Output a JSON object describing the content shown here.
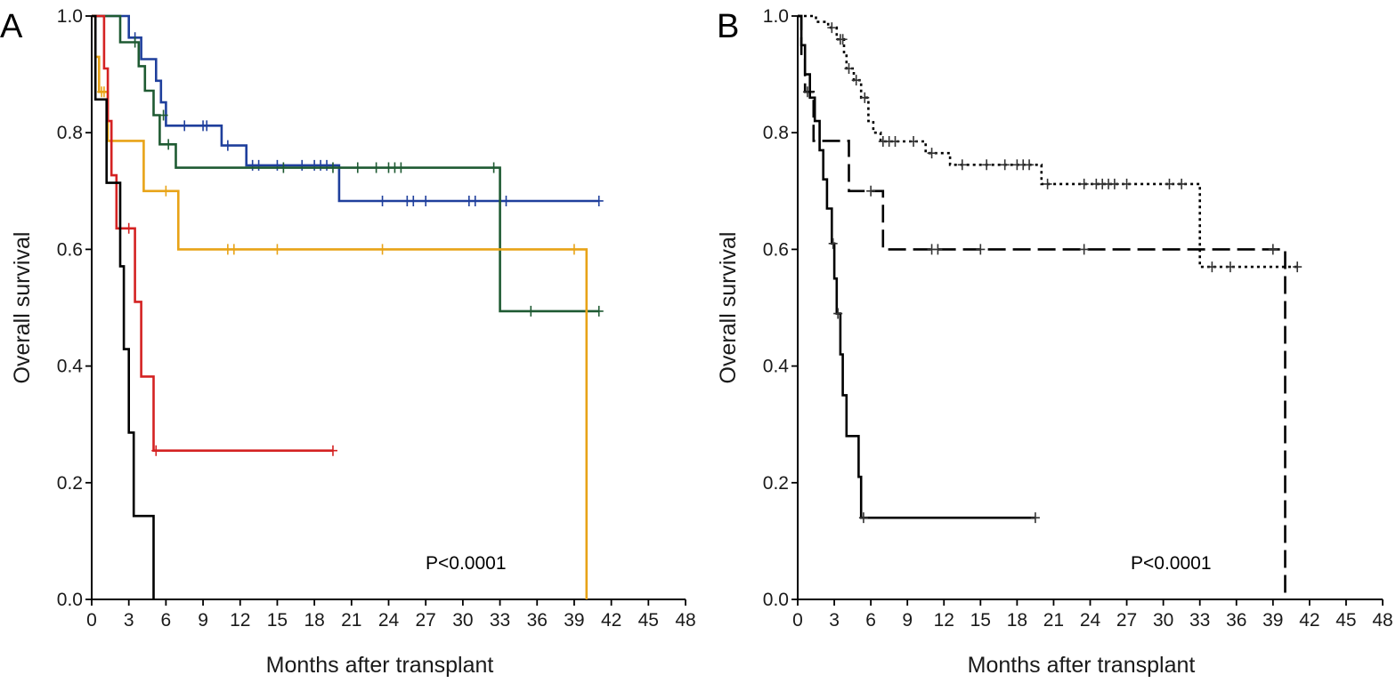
{
  "chart_data": [
    {
      "type": "line",
      "step": true,
      "panel_label": "A",
      "title": "",
      "xlabel": "Months after transplant",
      "ylabel": "Overall survival",
      "xlim": [
        0,
        48
      ],
      "ylim": [
        0,
        1.0
      ],
      "x_ticks": [
        "0",
        "3",
        "6",
        "9",
        "12",
        "15",
        "18",
        "21",
        "24",
        "27",
        "30",
        "33",
        "36",
        "39",
        "42",
        "45",
        "48"
      ],
      "y_ticks": [
        "0.0",
        "0.2",
        "0.4",
        "0.6",
        "0.8",
        "1.0"
      ],
      "annotation": "P<0.0001",
      "grid": false,
      "series": [
        {
          "color": "#1f3f9c",
          "line_style": "solid",
          "points": [
            [
              0,
              1.0
            ],
            [
              3.0,
              1.0
            ],
            [
              3.0,
              0.963
            ],
            [
              4.0,
              0.963
            ],
            [
              4.0,
              0.926
            ],
            [
              5.2,
              0.926
            ],
            [
              5.2,
              0.889
            ],
            [
              5.6,
              0.889
            ],
            [
              5.6,
              0.852
            ],
            [
              6.0,
              0.852
            ],
            [
              6.0,
              0.812
            ],
            [
              10.5,
              0.812
            ],
            [
              10.5,
              0.778
            ],
            [
              12.5,
              0.778
            ],
            [
              12.5,
              0.744
            ],
            [
              20.0,
              0.744
            ],
            [
              20.0,
              0.683
            ],
            [
              41.0,
              0.683
            ]
          ],
          "censored": [
            [
              3.5,
              0.963
            ],
            [
              7.5,
              0.812
            ],
            [
              9.0,
              0.812
            ],
            [
              9.3,
              0.812
            ],
            [
              11.0,
              0.778
            ],
            [
              13.0,
              0.744
            ],
            [
              13.5,
              0.744
            ],
            [
              15.0,
              0.744
            ],
            [
              17.0,
              0.744
            ],
            [
              18.0,
              0.744
            ],
            [
              18.5,
              0.744
            ],
            [
              19.0,
              0.744
            ],
            [
              23.5,
              0.683
            ],
            [
              25.5,
              0.683
            ],
            [
              26.0,
              0.683
            ],
            [
              27.0,
              0.683
            ],
            [
              30.5,
              0.683
            ],
            [
              31.0,
              0.683
            ],
            [
              33.5,
              0.683
            ],
            [
              41.0,
              0.683
            ]
          ]
        },
        {
          "color": "#1e5a32",
          "line_style": "solid",
          "points": [
            [
              0,
              1.0
            ],
            [
              2.3,
              1.0
            ],
            [
              2.3,
              0.955
            ],
            [
              3.8,
              0.955
            ],
            [
              3.8,
              0.914
            ],
            [
              4.3,
              0.914
            ],
            [
              4.3,
              0.872
            ],
            [
              5.0,
              0.872
            ],
            [
              5.0,
              0.83
            ],
            [
              5.5,
              0.83
            ],
            [
              5.5,
              0.78
            ],
            [
              6.8,
              0.78
            ],
            [
              6.8,
              0.74
            ],
            [
              33.0,
              0.74
            ],
            [
              33.0,
              0.494
            ],
            [
              41.0,
              0.494
            ]
          ],
          "censored": [
            [
              3.5,
              0.955
            ],
            [
              5.8,
              0.83
            ],
            [
              6.2,
              0.78
            ],
            [
              15.5,
              0.74
            ],
            [
              19.5,
              0.74
            ],
            [
              21.5,
              0.74
            ],
            [
              23.0,
              0.74
            ],
            [
              24.0,
              0.74
            ],
            [
              24.5,
              0.74
            ],
            [
              25.0,
              0.74
            ],
            [
              32.5,
              0.74
            ],
            [
              35.5,
              0.494
            ],
            [
              41.0,
              0.494
            ]
          ]
        },
        {
          "color": "#e8a317",
          "line_style": "solid",
          "points": [
            [
              0,
              1.0
            ],
            [
              0.3,
              1.0
            ],
            [
              0.3,
              0.93
            ],
            [
              0.6,
              0.93
            ],
            [
              0.6,
              0.87
            ],
            [
              1.3,
              0.87
            ],
            [
              1.3,
              0.786
            ],
            [
              4.2,
              0.786
            ],
            [
              4.2,
              0.7
            ],
            [
              7.0,
              0.7
            ],
            [
              7.0,
              0.6
            ],
            [
              40.0,
              0.6
            ],
            [
              40.0,
              0.0
            ]
          ],
          "censored": [
            [
              0.8,
              0.87
            ],
            [
              1.0,
              0.87
            ],
            [
              6.0,
              0.7
            ],
            [
              11.0,
              0.6
            ],
            [
              11.5,
              0.6
            ],
            [
              15.0,
              0.6
            ],
            [
              23.5,
              0.6
            ],
            [
              39.0,
              0.6
            ]
          ]
        },
        {
          "color": "#d42222",
          "line_style": "solid",
          "points": [
            [
              0,
              1.0
            ],
            [
              1.0,
              1.0
            ],
            [
              1.0,
              0.91
            ],
            [
              1.3,
              0.91
            ],
            [
              1.3,
              0.82
            ],
            [
              1.6,
              0.82
            ],
            [
              1.6,
              0.727
            ],
            [
              2.0,
              0.727
            ],
            [
              2.0,
              0.636
            ],
            [
              3.5,
              0.636
            ],
            [
              3.5,
              0.51
            ],
            [
              4.0,
              0.51
            ],
            [
              4.0,
              0.382
            ],
            [
              5.0,
              0.382
            ],
            [
              5.0,
              0.255
            ],
            [
              19.5,
              0.255
            ]
          ],
          "censored": [
            [
              3.0,
              0.636
            ],
            [
              5.2,
              0.255
            ],
            [
              19.5,
              0.255
            ]
          ]
        },
        {
          "color": "#000000",
          "line_style": "solid",
          "points": [
            [
              0,
              1.0
            ],
            [
              0.3,
              1.0
            ],
            [
              0.3,
              0.857
            ],
            [
              1.2,
              0.857
            ],
            [
              1.2,
              0.714
            ],
            [
              2.3,
              0.714
            ],
            [
              2.3,
              0.571
            ],
            [
              2.6,
              0.571
            ],
            [
              2.6,
              0.429
            ],
            [
              3.0,
              0.429
            ],
            [
              3.0,
              0.286
            ],
            [
              3.4,
              0.286
            ],
            [
              3.4,
              0.143
            ],
            [
              5.0,
              0.143
            ],
            [
              5.0,
              0.0
            ]
          ],
          "censored": []
        }
      ]
    },
    {
      "type": "line",
      "step": true,
      "panel_label": "B",
      "title": "",
      "xlabel": "Months after transplant",
      "ylabel": "Overall survival",
      "xlim": [
        0,
        48
      ],
      "ylim": [
        0,
        1.0
      ],
      "x_ticks": [
        "0",
        "3",
        "6",
        "9",
        "12",
        "15",
        "18",
        "21",
        "24",
        "27",
        "30",
        "33",
        "36",
        "39",
        "42",
        "45",
        "48"
      ],
      "y_ticks": [
        "0.0",
        "0.2",
        "0.4",
        "0.6",
        "0.8",
        "1.0"
      ],
      "annotation": "P<0.0001",
      "grid": false,
      "series": [
        {
          "color": "#000000",
          "line_style": "dotted",
          "points": [
            [
              0,
              1.0
            ],
            [
              1.5,
              1.0
            ],
            [
              1.5,
              0.99
            ],
            [
              2.5,
              0.99
            ],
            [
              2.5,
              0.98
            ],
            [
              3.2,
              0.98
            ],
            [
              3.2,
              0.96
            ],
            [
              3.8,
              0.96
            ],
            [
              3.8,
              0.935
            ],
            [
              4.0,
              0.935
            ],
            [
              4.0,
              0.91
            ],
            [
              4.6,
              0.91
            ],
            [
              4.6,
              0.89
            ],
            [
              5.2,
              0.89
            ],
            [
              5.2,
              0.86
            ],
            [
              5.8,
              0.86
            ],
            [
              5.8,
              0.82
            ],
            [
              6.2,
              0.82
            ],
            [
              6.2,
              0.8
            ],
            [
              6.8,
              0.8
            ],
            [
              6.8,
              0.785
            ],
            [
              10.5,
              0.785
            ],
            [
              10.5,
              0.765
            ],
            [
              12.5,
              0.765
            ],
            [
              12.5,
              0.745
            ],
            [
              20.0,
              0.745
            ],
            [
              20.0,
              0.712
            ],
            [
              33.0,
              0.712
            ],
            [
              33.0,
              0.57
            ],
            [
              41.0,
              0.57
            ]
          ],
          "censored": [
            [
              2.8,
              0.98
            ],
            [
              3.5,
              0.96
            ],
            [
              3.7,
              0.96
            ],
            [
              4.2,
              0.91
            ],
            [
              4.8,
              0.89
            ],
            [
              5.5,
              0.86
            ],
            [
              7.0,
              0.785
            ],
            [
              7.5,
              0.785
            ],
            [
              8.0,
              0.785
            ],
            [
              9.5,
              0.785
            ],
            [
              11.0,
              0.765
            ],
            [
              13.5,
              0.745
            ],
            [
              15.5,
              0.745
            ],
            [
              17.0,
              0.745
            ],
            [
              18.0,
              0.745
            ],
            [
              18.5,
              0.745
            ],
            [
              19.0,
              0.745
            ],
            [
              20.5,
              0.712
            ],
            [
              23.5,
              0.712
            ],
            [
              24.5,
              0.712
            ],
            [
              25.0,
              0.712
            ],
            [
              25.5,
              0.712
            ],
            [
              26.0,
              0.712
            ],
            [
              27.0,
              0.712
            ],
            [
              30.5,
              0.712
            ],
            [
              31.5,
              0.712
            ],
            [
              34.0,
              0.57
            ],
            [
              35.5,
              0.57
            ],
            [
              41.0,
              0.57
            ]
          ]
        },
        {
          "color": "#000000",
          "line_style": "dashed",
          "points": [
            [
              0,
              1.0
            ],
            [
              0.3,
              1.0
            ],
            [
              0.3,
              0.93
            ],
            [
              0.6,
              0.93
            ],
            [
              0.6,
              0.87
            ],
            [
              1.3,
              0.87
            ],
            [
              1.3,
              0.786
            ],
            [
              4.2,
              0.786
            ],
            [
              4.2,
              0.7
            ],
            [
              7.0,
              0.7
            ],
            [
              7.0,
              0.6
            ],
            [
              40.0,
              0.6
            ],
            [
              40.0,
              0.0
            ]
          ],
          "censored": [
            [
              0.8,
              0.87
            ],
            [
              1.0,
              0.87
            ],
            [
              6.0,
              0.7
            ],
            [
              11.0,
              0.6
            ],
            [
              11.5,
              0.6
            ],
            [
              15.0,
              0.6
            ],
            [
              23.5,
              0.6
            ],
            [
              39.0,
              0.6
            ]
          ]
        },
        {
          "color": "#000000",
          "line_style": "solid",
          "points": [
            [
              0,
              1.0
            ],
            [
              0.3,
              1.0
            ],
            [
              0.3,
              0.95
            ],
            [
              0.6,
              0.95
            ],
            [
              0.6,
              0.9
            ],
            [
              1.0,
              0.9
            ],
            [
              1.0,
              0.86
            ],
            [
              1.4,
              0.86
            ],
            [
              1.4,
              0.82
            ],
            [
              1.8,
              0.82
            ],
            [
              1.8,
              0.77
            ],
            [
              2.1,
              0.77
            ],
            [
              2.1,
              0.72
            ],
            [
              2.4,
              0.72
            ],
            [
              2.4,
              0.67
            ],
            [
              2.8,
              0.67
            ],
            [
              2.8,
              0.61
            ],
            [
              3.0,
              0.61
            ],
            [
              3.0,
              0.55
            ],
            [
              3.2,
              0.55
            ],
            [
              3.2,
              0.49
            ],
            [
              3.5,
              0.49
            ],
            [
              3.5,
              0.42
            ],
            [
              3.7,
              0.42
            ],
            [
              3.7,
              0.35
            ],
            [
              4.0,
              0.35
            ],
            [
              4.0,
              0.28
            ],
            [
              5.0,
              0.28
            ],
            [
              5.0,
              0.21
            ],
            [
              5.2,
              0.21
            ],
            [
              5.2,
              0.14
            ],
            [
              19.5,
              0.14
            ]
          ],
          "censored": [
            [
              2.9,
              0.61
            ],
            [
              3.3,
              0.49
            ],
            [
              5.4,
              0.14
            ],
            [
              19.5,
              0.14
            ]
          ]
        }
      ]
    }
  ]
}
